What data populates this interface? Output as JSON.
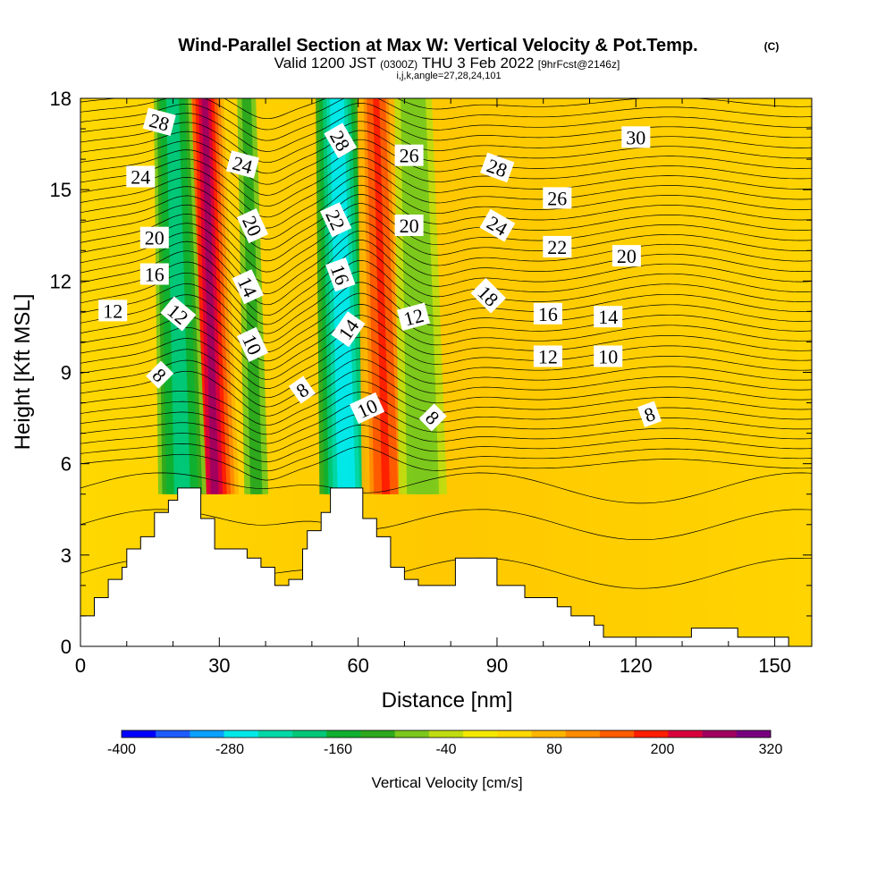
{
  "chart_data": {
    "type": "heatmap",
    "title": "Wind-Parallel Section at Max W: Vertical Velocity & Pot.Temp.",
    "title_mark": "(C)",
    "subtitle": {
      "valid": "Valid 1200 JST",
      "utc": "(0300Z)",
      "date": "THU 3 Feb 2022",
      "forecast": "[9hrFcst@2146z]"
    },
    "indices_line": "i,j,k,angle=27,28,24,101",
    "xlabel": "Distance [nm]",
    "ylabel": "Height [Kft MSL]",
    "xlim": [
      0,
      158
    ],
    "ylim": [
      0,
      18
    ],
    "x_ticks": [
      0,
      30,
      60,
      90,
      120,
      150
    ],
    "y_ticks": [
      0,
      3,
      6,
      9,
      12,
      15,
      18
    ],
    "colorbar": {
      "label": "Vertical Velocity [cm/s]",
      "levels": [
        -400,
        -360,
        -320,
        -280,
        -240,
        -200,
        -160,
        -120,
        -80,
        -40,
        0,
        40,
        80,
        120,
        160,
        200,
        240,
        280,
        320
      ],
      "tick_labels": [
        -400,
        -280,
        -160,
        -40,
        80,
        200,
        320
      ],
      "colors": [
        "#0000ff",
        "#1e5cff",
        "#0aa0ff",
        "#00e8e8",
        "#00d8a8",
        "#00c878",
        "#10b030",
        "#2ea81c",
        "#7cc81c",
        "#c0dc10",
        "#f4e800",
        "#ffd800",
        "#ffb400",
        "#ff8c00",
        "#ff5a00",
        "#ff1e00",
        "#d8003c",
        "#a00060",
        "#780080"
      ]
    },
    "velocity_features": [
      {
        "name": "updraft",
        "x_range": [
          25,
          33
        ],
        "peak_cm_s": 300
      },
      {
        "name": "downdraft",
        "x_range": [
          18,
          26
        ],
        "peak_cm_s": -200
      },
      {
        "name": "downdraft",
        "x_range": [
          36,
          40
        ],
        "peak_cm_s": -120
      },
      {
        "name": "downdraft",
        "x_range": [
          53,
          62
        ],
        "peak_cm_s": -280
      },
      {
        "name": "updraft",
        "x_range": [
          62,
          70
        ],
        "peak_cm_s": 220
      },
      {
        "name": "downdraft",
        "x_range": [
          70,
          78
        ],
        "peak_cm_s": -80
      }
    ],
    "theta_contour_labels": [
      {
        "text": "28",
        "x": 17,
        "y": 17.2,
        "rot": 15
      },
      {
        "text": "24",
        "x": 13,
        "y": 15.4,
        "rot": 0
      },
      {
        "text": "20",
        "x": 16,
        "y": 13.4,
        "rot": 0
      },
      {
        "text": "16",
        "x": 16,
        "y": 12.2,
        "rot": 0
      },
      {
        "text": "12",
        "x": 7,
        "y": 11.0,
        "rot": 0
      },
      {
        "text": "12",
        "x": 21,
        "y": 10.9,
        "rot": 40
      },
      {
        "text": "8",
        "x": 17,
        "y": 8.9,
        "rot": 45
      },
      {
        "text": "24",
        "x": 35,
        "y": 15.8,
        "rot": 15
      },
      {
        "text": "20",
        "x": 37,
        "y": 13.8,
        "rot": 65
      },
      {
        "text": "14",
        "x": 36,
        "y": 11.8,
        "rot": 65
      },
      {
        "text": "10",
        "x": 37,
        "y": 9.9,
        "rot": 65
      },
      {
        "text": "8",
        "x": 48,
        "y": 8.4,
        "rot": -35
      },
      {
        "text": "28",
        "x": 56,
        "y": 16.6,
        "rot": 60
      },
      {
        "text": "22",
        "x": 55,
        "y": 14.0,
        "rot": 65
      },
      {
        "text": "16",
        "x": 56,
        "y": 12.2,
        "rot": 70
      },
      {
        "text": "14",
        "x": 58,
        "y": 10.4,
        "rot": -55
      },
      {
        "text": "10",
        "x": 62,
        "y": 7.8,
        "rot": -25
      },
      {
        "text": "26",
        "x": 71,
        "y": 16.1,
        "rot": 0
      },
      {
        "text": "20",
        "x": 71,
        "y": 13.8,
        "rot": 0
      },
      {
        "text": "12",
        "x": 72,
        "y": 10.8,
        "rot": -15
      },
      {
        "text": "8",
        "x": 76,
        "y": 7.5,
        "rot": 45
      },
      {
        "text": "28",
        "x": 90,
        "y": 15.7,
        "rot": 20
      },
      {
        "text": "24",
        "x": 90,
        "y": 13.8,
        "rot": 30
      },
      {
        "text": "18",
        "x": 88,
        "y": 11.5,
        "rot": 45
      },
      {
        "text": "16",
        "x": 101,
        "y": 10.9,
        "rot": 0
      },
      {
        "text": "12",
        "x": 101,
        "y": 9.5,
        "rot": 0
      },
      {
        "text": "26",
        "x": 103,
        "y": 14.7,
        "rot": 0
      },
      {
        "text": "22",
        "x": 103,
        "y": 13.1,
        "rot": 0
      },
      {
        "text": "14",
        "x": 114,
        "y": 10.8,
        "rot": 0
      },
      {
        "text": "10",
        "x": 114,
        "y": 9.5,
        "rot": 0
      },
      {
        "text": "8",
        "x": 123,
        "y": 7.6,
        "rot": -20
      },
      {
        "text": "30",
        "x": 120,
        "y": 16.7,
        "rot": 0
      },
      {
        "text": "20",
        "x": 118,
        "y": 12.8,
        "rot": 0
      }
    ],
    "terrain_steps": [
      [
        0,
        1.0
      ],
      [
        3,
        1.0
      ],
      [
        3,
        1.6
      ],
      [
        6,
        1.6
      ],
      [
        6,
        2.2
      ],
      [
        9,
        2.2
      ],
      [
        9,
        2.6
      ],
      [
        10,
        2.6
      ],
      [
        10,
        3.2
      ],
      [
        13,
        3.2
      ],
      [
        13,
        3.6
      ],
      [
        16,
        3.6
      ],
      [
        16,
        4.4
      ],
      [
        19,
        4.4
      ],
      [
        19,
        4.8
      ],
      [
        21,
        4.8
      ],
      [
        21,
        5.2
      ],
      [
        26,
        5.2
      ],
      [
        26,
        4.2
      ],
      [
        29,
        4.2
      ],
      [
        29,
        3.2
      ],
      [
        36,
        3.2
      ],
      [
        36,
        2.9
      ],
      [
        39,
        2.9
      ],
      [
        39,
        2.6
      ],
      [
        42,
        2.6
      ],
      [
        42,
        2.0
      ],
      [
        45,
        2.0
      ],
      [
        45,
        2.2
      ],
      [
        48,
        2.2
      ],
      [
        48,
        3.2
      ],
      [
        49,
        3.2
      ],
      [
        49,
        3.8
      ],
      [
        52,
        3.8
      ],
      [
        52,
        4.4
      ],
      [
        54,
        4.4
      ],
      [
        54,
        5.2
      ],
      [
        61,
        5.2
      ],
      [
        61,
        4.2
      ],
      [
        64,
        4.2
      ],
      [
        64,
        3.6
      ],
      [
        67,
        3.6
      ],
      [
        67,
        2.6
      ],
      [
        70,
        2.6
      ],
      [
        70,
        2.2
      ],
      [
        73,
        2.2
      ],
      [
        73,
        2.0
      ],
      [
        81,
        2.0
      ],
      [
        81,
        2.9
      ],
      [
        90,
        2.9
      ],
      [
        90,
        2.0
      ],
      [
        96,
        2.0
      ],
      [
        96,
        1.6
      ],
      [
        103,
        1.6
      ],
      [
        103,
        1.3
      ],
      [
        106,
        1.3
      ],
      [
        106,
        1.0
      ],
      [
        111,
        1.0
      ],
      [
        111,
        0.7
      ],
      [
        113,
        0.7
      ],
      [
        113,
        0.3
      ],
      [
        116,
        0.3
      ],
      [
        116,
        0.3
      ],
      [
        132,
        0.3
      ],
      [
        132,
        0.6
      ],
      [
        142,
        0.6
      ],
      [
        142,
        0.3
      ],
      [
        153,
        0.3
      ],
      [
        153,
        0.0
      ],
      [
        0,
        0.0
      ]
    ]
  }
}
